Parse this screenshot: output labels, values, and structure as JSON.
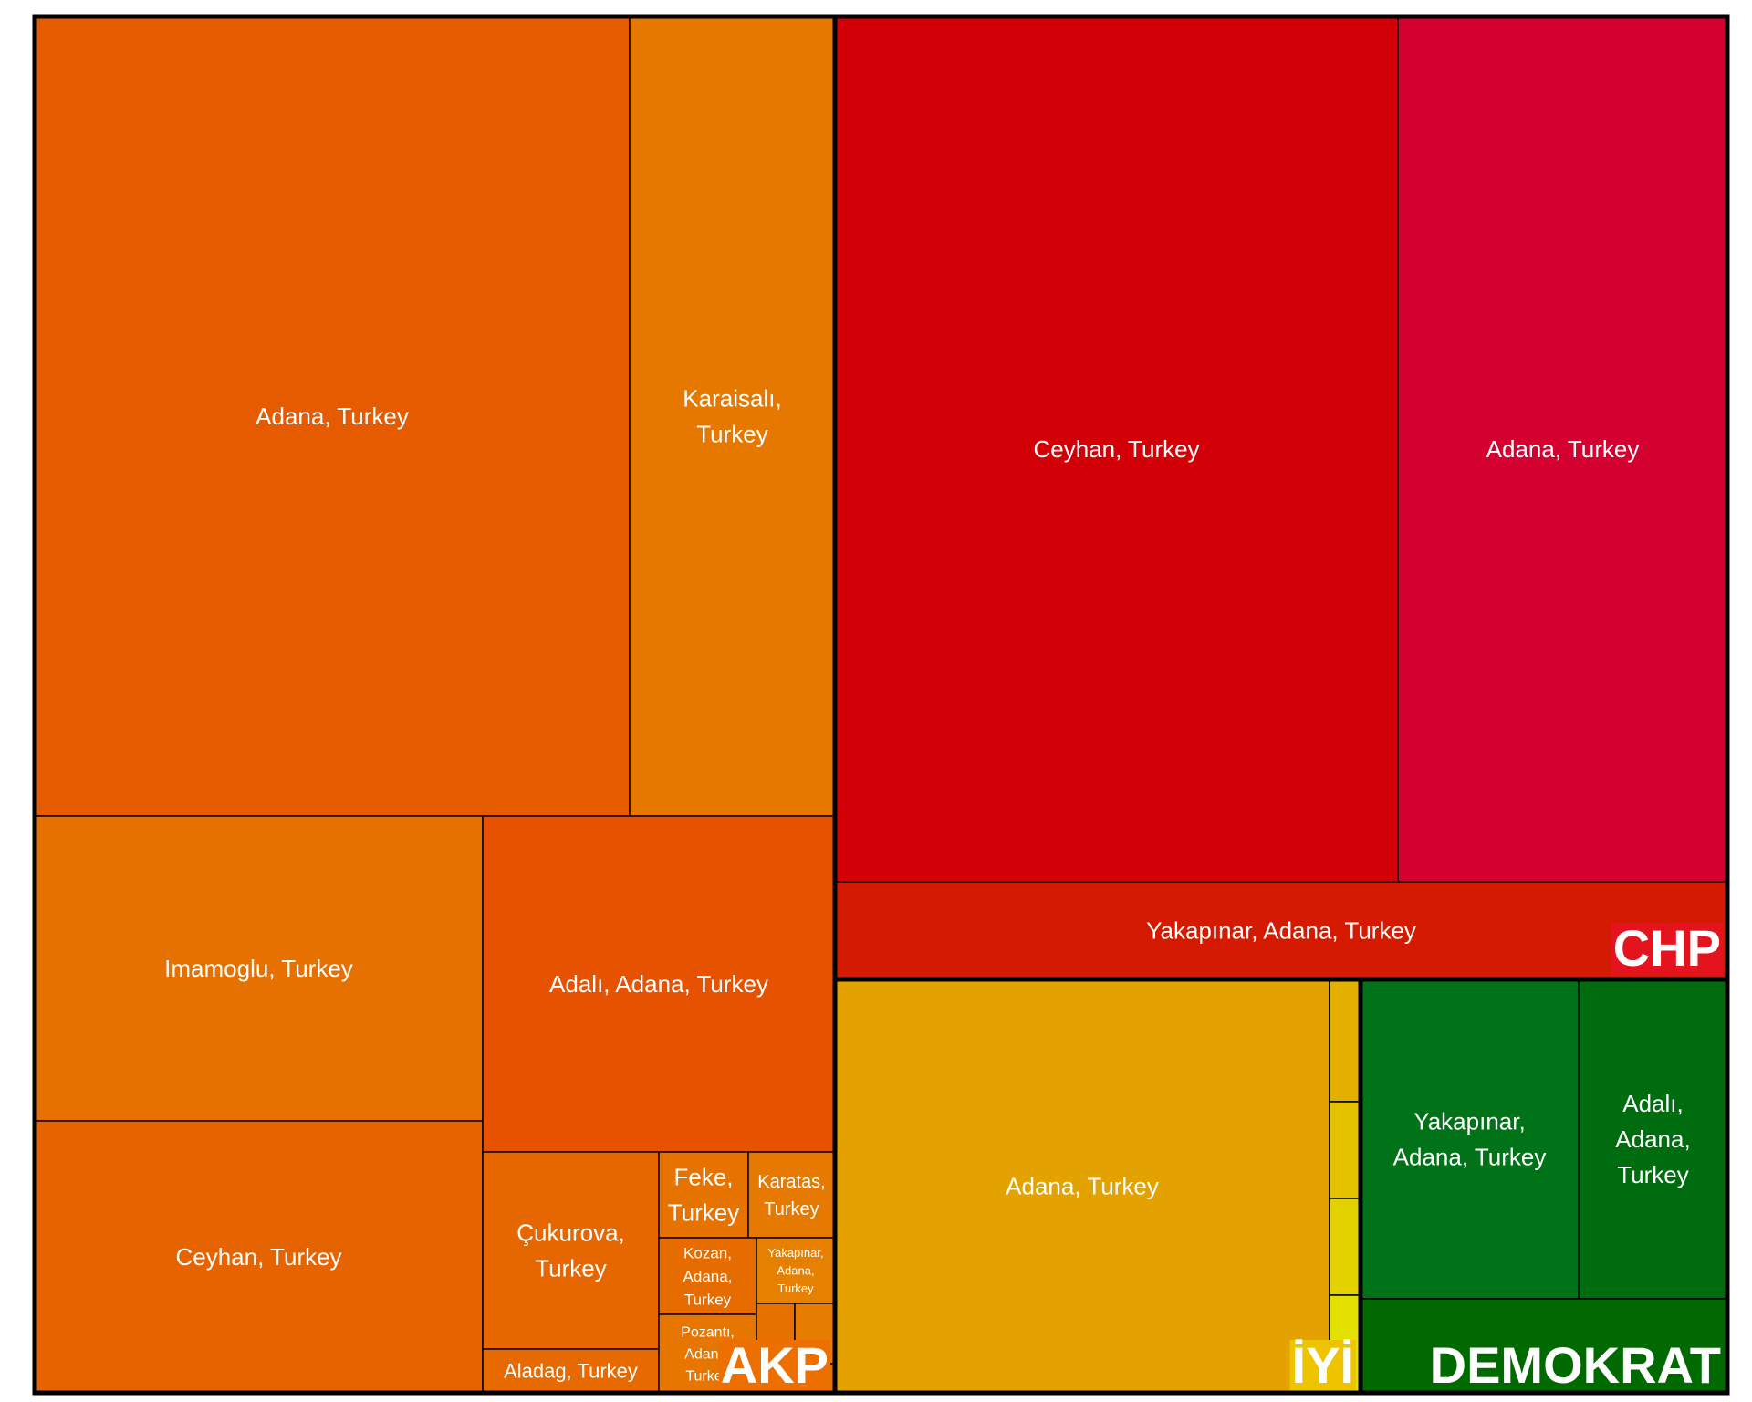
{
  "chart_data": {
    "type": "treemap",
    "groups": [
      {
        "name": "AKP",
        "color": "#e66700",
        "label_bg": "#ec6f00",
        "label_color": "#ffffff",
        "cells": [
          {
            "label": "Adana, Turkey",
            "color": "#e65a00"
          },
          {
            "label": "Karaisalı, Turkey",
            "color": "#e67800"
          },
          {
            "label": "Imamoglu, Turkey",
            "color": "#e67000"
          },
          {
            "label": "Ceyhan, Turkey",
            "color": "#e66400"
          },
          {
            "label": "Adalı, Adana, Turkey",
            "color": "#e65200"
          },
          {
            "label": "Çukurova, Turkey",
            "color": "#e66600"
          },
          {
            "label": "Aladag, Turkey",
            "color": "#e66a00"
          },
          {
            "label": "Feke, Turkey",
            "color": "#e67200"
          },
          {
            "label": "Karatas, Turkey",
            "color": "#e67a00"
          },
          {
            "label": "Kozan, Adana, Turkey",
            "color": "#e66c00"
          },
          {
            "label": "Yakapınar, Adana, Turkey",
            "color": "#e68000"
          },
          {
            "label": "Pozantı, Adana, Turkey",
            "color": "#e67600"
          },
          {
            "label": "",
            "color": "#e67000"
          },
          {
            "label": "",
            "color": "#e67c00"
          },
          {
            "label": "",
            "color": "#e67400"
          }
        ]
      },
      {
        "name": "CHP",
        "color": "#d40010",
        "label_bg": "#e5131e",
        "label_color": "#ffffff",
        "cells": [
          {
            "label": "Ceyhan, Turkey",
            "color": "#d40008"
          },
          {
            "label": "Adana, Turkey",
            "color": "#d40030"
          },
          {
            "label": "Yakapınar, Adana, Turkey",
            "color": "#d41a00"
          }
        ]
      },
      {
        "name": "İYİ",
        "color": "#e4a200",
        "label_bg": "#eec300",
        "label_color": "#ffffff",
        "cells": [
          {
            "label": "Adana, Turkey",
            "color": "#e4a200"
          },
          {
            "label": "",
            "color": "#e4b000"
          },
          {
            "label": "",
            "color": "#e4c200"
          },
          {
            "label": "",
            "color": "#e4d200"
          },
          {
            "label": "",
            "color": "#e4e000"
          }
        ]
      },
      {
        "name": "DEMOKRAT",
        "color": "#007010",
        "label_bg": "#006a00",
        "label_color": "#ffffff",
        "cells": [
          {
            "label": "Yakapınar, Adana, Turkey",
            "color": "#007218"
          },
          {
            "label": "Adalı, Adana, Turkey",
            "color": "#006c10"
          },
          {
            "label": "",
            "color": "#006a00"
          }
        ]
      }
    ]
  }
}
